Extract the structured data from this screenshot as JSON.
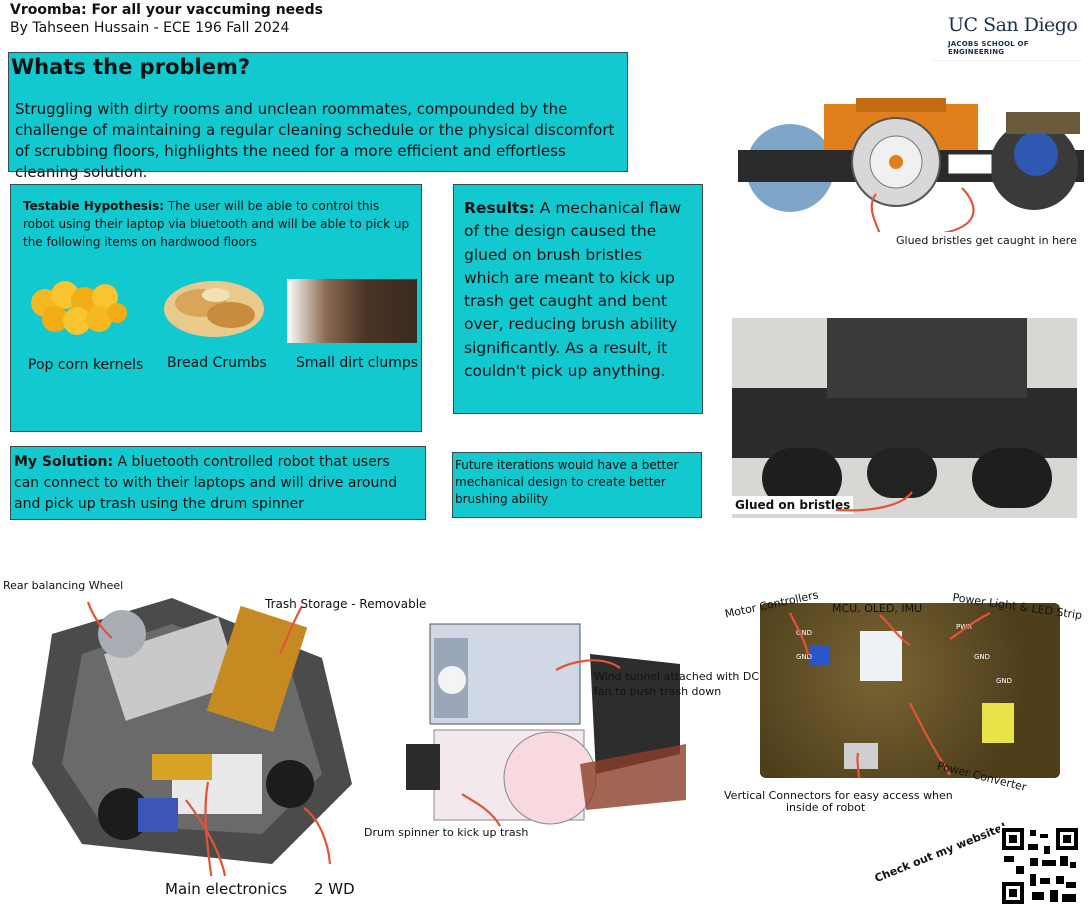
{
  "header": {
    "title": "Vroomba: For all your vaccuming needs",
    "byline": "By Tahseen Hussain - ECE 196 Fall 2024"
  },
  "logo": {
    "university": "UC San Diego",
    "school": "JACOBS SCHOOL OF ENGINEERING"
  },
  "problem": {
    "title": "Whats the problem?",
    "text": "Struggling with dirty rooms and unclean roommates, compounded by the challenge of maintaining a regular cleaning schedule or the physical discomfort of scrubbing floors, highlights the need for a more efficient and effortless cleaning solution."
  },
  "hypothesis": {
    "label": "Testable Hypothesis:",
    "text": " The user will be able to control this robot using their laptop via bluetooth and will be able to pick up the following items on hardwood floors",
    "items": [
      "Pop corn kernels",
      "Bread Crumbs",
      "Small dirt clumps"
    ]
  },
  "results": {
    "label": "Results:",
    "text": " A mechanical flaw of the design caused the glued on brush bristles which are meant to kick up trash get caught and bent over, reducing brush ability significantly. As a result, it couldn't pick up anything."
  },
  "solution": {
    "label": "My Solution:",
    "text": " A bluetooth controlled robot that users can connect to with their laptops and will drive around and pick up trash using the drum spinner"
  },
  "future": {
    "text": "Future iterations would have a better mechanical design to create better brushing ability"
  },
  "callouts": {
    "bristles_caught": "Glued bristles get caught in here",
    "glued_bristles": "Glued on bristles",
    "rear_wheel": "Rear balancing Wheel",
    "trash_storage": "Trash Storage - Removable",
    "main_electronics": "Main electronics",
    "two_wd": "2 WD",
    "wind_tunnel_1": "Wind tunnel attached with DC",
    "wind_tunnel_2": "fan to push trash down",
    "drum_spinner": "Drum spinner to kick up trash",
    "motor_controllers": "Motor Controllers",
    "mcu": "MCU, OLED, IMU",
    "power_light": "Power Light & LED Strip",
    "power_converter": "Power Converter",
    "vertical_1": "Vertical Connectors for easy access when",
    "vertical_2": "inside of robot",
    "website": "Check out my website!"
  },
  "pcb_silk": {
    "gnd1": "GND",
    "gnd2": "GND",
    "pwr": "PWR",
    "gnd3": "GND",
    "gnd4": "GND"
  },
  "colors": {
    "panel": "#12c9cf",
    "arrow": "#e2543a",
    "ucsd_navy": "#1b2f4e"
  },
  "icons": [
    "qr-code-icon",
    "popcorn-image",
    "breadcrumb-image",
    "dirt-image"
  ]
}
